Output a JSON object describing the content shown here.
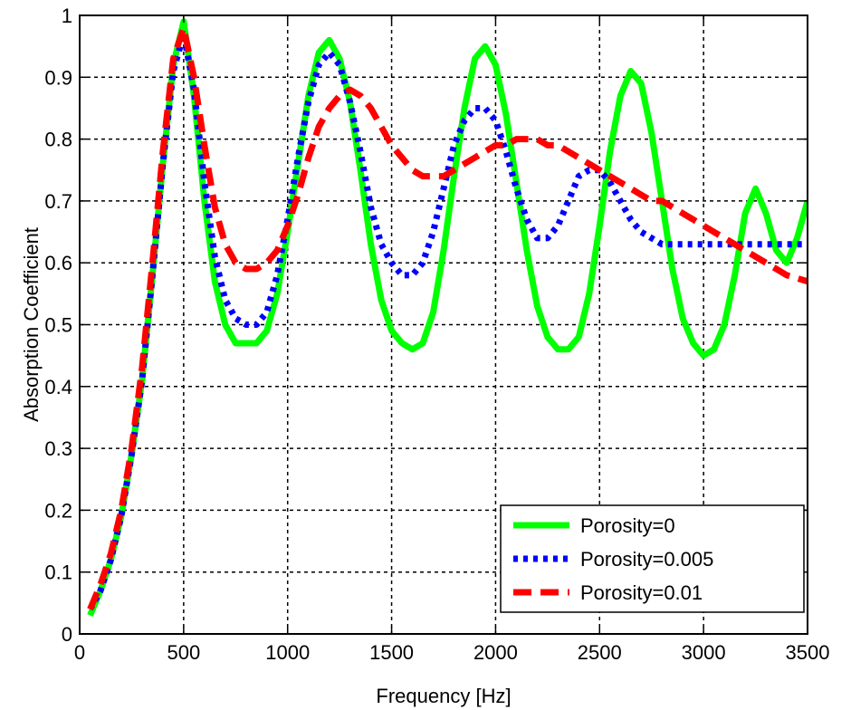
{
  "chart_data": {
    "type": "line",
    "title": "",
    "xlabel": "Frequency [Hz]",
    "ylabel": "Absorption Coefficient",
    "xlim": [
      0,
      3500
    ],
    "ylim": [
      0,
      1
    ],
    "xticks": [
      0,
      500,
      1000,
      1500,
      2000,
      2500,
      3000,
      3500
    ],
    "yticks": [
      0,
      0.1,
      0.2,
      0.3,
      0.4,
      0.5,
      0.6,
      0.7,
      0.8,
      0.9,
      1
    ],
    "xtick_labels": [
      "0",
      "500",
      "1000",
      "1500",
      "2000",
      "2500",
      "3000",
      "3500"
    ],
    "ytick_labels": [
      "0",
      "0.1",
      "0.2",
      "0.3",
      "0.4",
      "0.5",
      "0.6",
      "0.7",
      "0.8",
      "0.9",
      "1"
    ],
    "grid": true,
    "legend_position": "bottom-right",
    "series": [
      {
        "name": "Porosity=0",
        "color": "#00ff00",
        "style": "solid",
        "x": [
          50,
          100,
          150,
          200,
          250,
          300,
          350,
          400,
          450,
          500,
          550,
          600,
          650,
          700,
          750,
          800,
          850,
          900,
          950,
          1000,
          1050,
          1100,
          1150,
          1200,
          1250,
          1300,
          1350,
          1400,
          1450,
          1500,
          1550,
          1600,
          1650,
          1700,
          1750,
          1800,
          1850,
          1900,
          1950,
          2000,
          2050,
          2100,
          2150,
          2200,
          2250,
          2300,
          2350,
          2400,
          2450,
          2500,
          2550,
          2600,
          2650,
          2700,
          2750,
          2800,
          2850,
          2900,
          2950,
          3000,
          3050,
          3100,
          3150,
          3200,
          3250,
          3300,
          3350,
          3400,
          3450,
          3500
        ],
        "y": [
          0.03,
          0.07,
          0.12,
          0.19,
          0.29,
          0.41,
          0.58,
          0.76,
          0.92,
          0.99,
          0.87,
          0.7,
          0.57,
          0.5,
          0.47,
          0.47,
          0.47,
          0.49,
          0.55,
          0.65,
          0.76,
          0.87,
          0.94,
          0.96,
          0.93,
          0.86,
          0.75,
          0.63,
          0.54,
          0.49,
          0.47,
          0.46,
          0.47,
          0.52,
          0.62,
          0.74,
          0.85,
          0.93,
          0.95,
          0.92,
          0.84,
          0.73,
          0.62,
          0.53,
          0.48,
          0.46,
          0.46,
          0.48,
          0.55,
          0.66,
          0.78,
          0.87,
          0.91,
          0.89,
          0.81,
          0.7,
          0.59,
          0.51,
          0.47,
          0.45,
          0.46,
          0.5,
          0.58,
          0.68,
          0.72,
          0.68,
          0.62,
          0.6,
          0.64,
          0.7
        ]
      },
      {
        "name": "Porosity=0.005",
        "color": "#0000ff",
        "style": "dotted",
        "x": [
          50,
          100,
          150,
          200,
          250,
          300,
          350,
          400,
          450,
          500,
          550,
          600,
          650,
          700,
          750,
          800,
          850,
          900,
          950,
          1000,
          1050,
          1100,
          1150,
          1200,
          1250,
          1300,
          1350,
          1400,
          1450,
          1500,
          1550,
          1600,
          1650,
          1700,
          1750,
          1800,
          1850,
          1900,
          1950,
          2000,
          2050,
          2100,
          2150,
          2200,
          2250,
          2300,
          2350,
          2400,
          2450,
          2500,
          2550,
          2600,
          2650,
          2700,
          2750,
          2800,
          2850,
          2900,
          2950,
          3000,
          3050,
          3100,
          3150,
          3200,
          3250,
          3300,
          3350,
          3400,
          3450,
          3500
        ],
        "y": [
          0.04,
          0.07,
          0.12,
          0.19,
          0.29,
          0.41,
          0.58,
          0.76,
          0.91,
          0.97,
          0.88,
          0.73,
          0.61,
          0.54,
          0.51,
          0.5,
          0.5,
          0.52,
          0.58,
          0.67,
          0.77,
          0.86,
          0.92,
          0.94,
          0.92,
          0.86,
          0.78,
          0.69,
          0.63,
          0.6,
          0.58,
          0.58,
          0.6,
          0.65,
          0.72,
          0.79,
          0.83,
          0.85,
          0.85,
          0.83,
          0.78,
          0.72,
          0.67,
          0.64,
          0.64,
          0.66,
          0.7,
          0.74,
          0.75,
          0.75,
          0.73,
          0.7,
          0.67,
          0.65,
          0.64,
          0.63,
          0.63,
          0.63,
          0.63,
          0.63,
          0.63,
          0.63,
          0.63,
          0.63,
          0.63,
          0.63,
          0.63,
          0.63,
          0.63,
          0.63
        ]
      },
      {
        "name": "Porosity=0.01",
        "color": "#ff0000",
        "style": "dashed",
        "x": [
          50,
          100,
          150,
          200,
          250,
          300,
          350,
          400,
          450,
          500,
          550,
          600,
          650,
          700,
          750,
          800,
          850,
          900,
          950,
          1000,
          1050,
          1100,
          1150,
          1200,
          1250,
          1300,
          1350,
          1400,
          1450,
          1500,
          1550,
          1600,
          1650,
          1700,
          1750,
          1800,
          1850,
          1900,
          1950,
          2000,
          2050,
          2100,
          2150,
          2200,
          2250,
          2300,
          2350,
          2400,
          2450,
          2500,
          2550,
          2600,
          2650,
          2700,
          2750,
          2800,
          2850,
          2900,
          2950,
          3000,
          3050,
          3100,
          3150,
          3200,
          3250,
          3300,
          3350,
          3400,
          3450,
          3500
        ],
        "y": [
          0.04,
          0.08,
          0.13,
          0.2,
          0.3,
          0.43,
          0.6,
          0.78,
          0.93,
          0.98,
          0.9,
          0.79,
          0.69,
          0.63,
          0.6,
          0.59,
          0.59,
          0.6,
          0.62,
          0.66,
          0.71,
          0.77,
          0.82,
          0.85,
          0.87,
          0.88,
          0.87,
          0.85,
          0.82,
          0.79,
          0.77,
          0.75,
          0.74,
          0.74,
          0.74,
          0.75,
          0.76,
          0.77,
          0.78,
          0.79,
          0.79,
          0.8,
          0.8,
          0.8,
          0.79,
          0.79,
          0.78,
          0.77,
          0.76,
          0.75,
          0.74,
          0.73,
          0.72,
          0.71,
          0.7,
          0.7,
          0.69,
          0.68,
          0.67,
          0.66,
          0.65,
          0.64,
          0.63,
          0.62,
          0.61,
          0.6,
          0.59,
          0.58,
          0.575,
          0.57
        ]
      }
    ]
  }
}
